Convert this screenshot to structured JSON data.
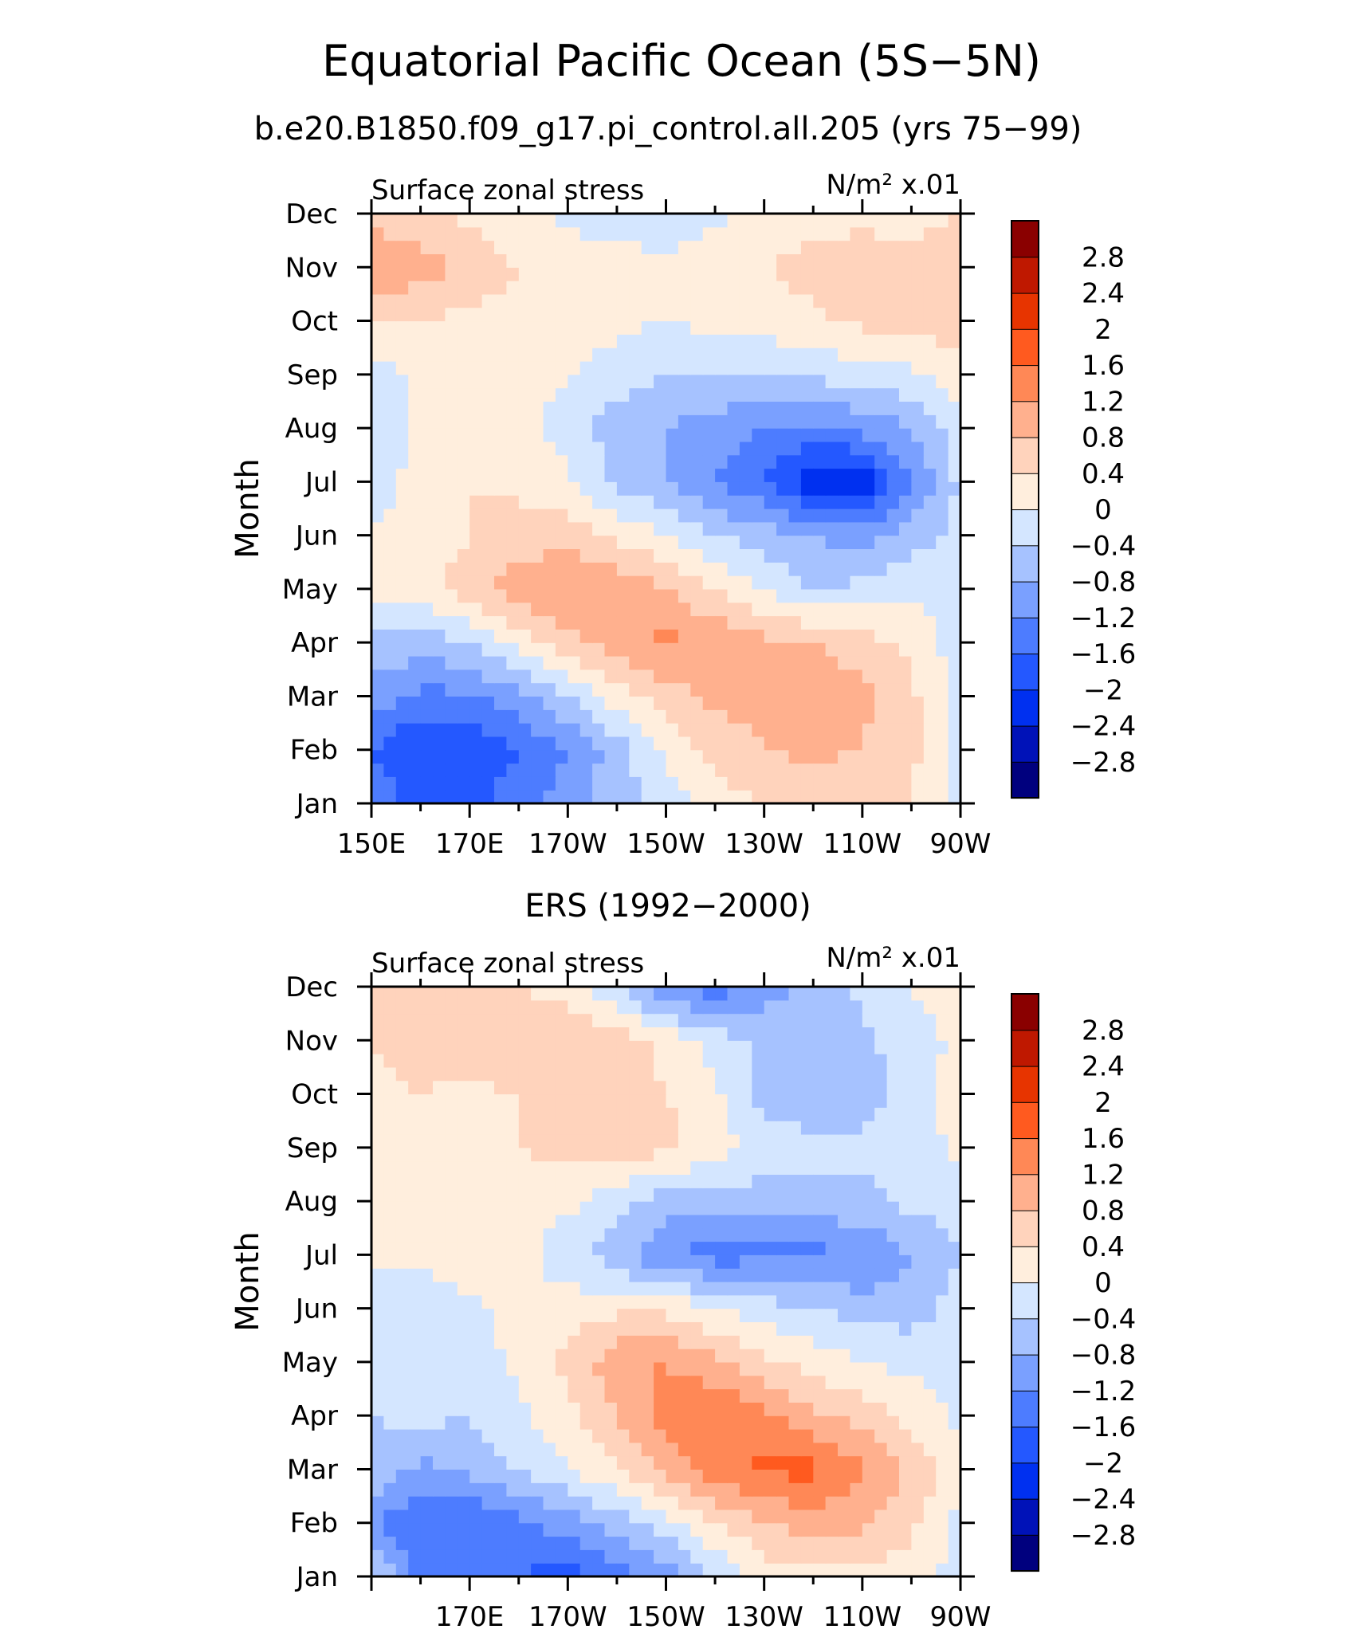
{
  "figure": {
    "title": "Equatorial Pacific Ocean (5S−5N)",
    "subtitle": "b.e20.B1850.f09_g17.pi_control.all.205 (yrs 75−99)",
    "panel2_title": "ERS (1992−2000)"
  },
  "colorbar": {
    "labels": [
      "2.8",
      "2.4",
      "2",
      "1.6",
      "1.2",
      "0.8",
      "0.4",
      "0",
      "−0.4",
      "−0.8",
      "−1.2",
      "−1.6",
      "−2",
      "−2.4",
      "−2.8"
    ],
    "levels": [
      -2.8,
      -2.4,
      -2,
      -1.6,
      -1.2,
      -0.8,
      -0.4,
      0,
      0.4,
      0.8,
      1.2,
      1.6,
      2,
      2.4,
      2.8
    ],
    "colors_low_to_high": [
      "#00007e",
      "#0012b8",
      "#0030f0",
      "#2458ff",
      "#4d7cff",
      "#7aa0ff",
      "#a6c2ff",
      "#d4e6ff",
      "#ffeedd",
      "#ffd3bc",
      "#ffb08e",
      "#ff8856",
      "#ff5a1f",
      "#e73400",
      "#bf1800",
      "#8a0000"
    ]
  },
  "chart_data": [
    {
      "type": "heatmap",
      "title": "Equatorial Pacific Ocean (5S−5N)",
      "subtitle": "b.e20.B1850.f09_g17.pi_control.all.205 (yrs 75−99)",
      "left_label": "Surface zonal stress",
      "right_label": "N/m² x.01",
      "ylabel": "Month",
      "x_ticks": [
        "150E",
        "170E",
        "170W",
        "150W",
        "130W",
        "110W",
        "90W"
      ],
      "x_tick_values": [
        150,
        170,
        190,
        210,
        230,
        250,
        270
      ],
      "xlim": [
        150,
        270
      ],
      "y_ticks": [
        "Jan",
        "Feb",
        "Mar",
        "Apr",
        "May",
        "Jun",
        "Jul",
        "Aug",
        "Sep",
        "Oct",
        "Nov",
        "Dec"
      ],
      "ylim": [
        1,
        12
      ],
      "lon": [
        150,
        160,
        170,
        180,
        190,
        200,
        210,
        220,
        230,
        240,
        250,
        260,
        270
      ],
      "values": [
        [
          -1.3,
          -1.8,
          -1.7,
          -1.4,
          -1.0,
          -0.6,
          -0.2,
          0.2,
          0.4,
          0.4,
          0.4,
          0.4,
          -0.2
        ],
        [
          -1.6,
          -2.0,
          -1.9,
          -1.6,
          -1.2,
          -0.6,
          0.1,
          0.5,
          0.8,
          0.9,
          0.8,
          0.5,
          -0.2
        ],
        [
          -1.0,
          -1.3,
          -1.3,
          -0.9,
          -0.4,
          0.2,
          0.6,
          0.9,
          1.0,
          1.0,
          0.9,
          0.5,
          -0.2
        ],
        [
          -0.5,
          -0.6,
          -0.4,
          0.2,
          0.6,
          1.0,
          1.3,
          1.1,
          0.9,
          0.8,
          0.6,
          0.3,
          -0.2
        ],
        [
          0.1,
          0.3,
          0.6,
          1.0,
          1.3,
          1.1,
          0.8,
          0.4,
          0.0,
          -0.4,
          -0.3,
          -0.1,
          -0.2
        ],
        [
          0.1,
          0.2,
          0.4,
          0.6,
          0.6,
          0.3,
          0.0,
          -0.4,
          -0.6,
          -0.8,
          -1.0,
          -0.6,
          -0.3
        ],
        [
          -0.3,
          0.2,
          0.4,
          0.3,
          0.1,
          -0.5,
          -0.8,
          -1.2,
          -1.6,
          -2.4,
          -2.3,
          -1.2,
          -0.3
        ],
        [
          -0.4,
          0.2,
          0.3,
          0.2,
          -0.2,
          -0.6,
          -0.8,
          -1.0,
          -1.2,
          -1.3,
          -1.1,
          -0.8,
          -0.2
        ],
        [
          -0.2,
          0.1,
          0.2,
          0.2,
          0.0,
          -0.2,
          -0.4,
          -0.4,
          -0.4,
          -0.3,
          -0.2,
          -0.1,
          0.3
        ],
        [
          0.4,
          0.4,
          0.3,
          0.2,
          0.2,
          0.1,
          0.0,
          0.1,
          0.2,
          0.3,
          0.5,
          0.5,
          0.6
        ],
        [
          1.3,
          1.0,
          0.7,
          0.4,
          0.3,
          0.2,
          0.1,
          0.2,
          0.4,
          0.6,
          0.6,
          0.5,
          0.6
        ],
        [
          0.6,
          0.5,
          0.3,
          0.1,
          -0.1,
          -0.3,
          -0.2,
          -0.1,
          0.1,
          0.2,
          0.3,
          0.3,
          0.4
        ]
      ]
    },
    {
      "type": "heatmap",
      "title": "ERS (1992−2000)",
      "left_label": "Surface zonal stress",
      "right_label": "N/m² x.01",
      "ylabel": "Month",
      "x_ticks": [
        "170E",
        "170W",
        "150W",
        "130W",
        "110W",
        "90W"
      ],
      "x_tick_values": [
        170,
        190,
        210,
        230,
        250,
        270
      ],
      "xlim": [
        150,
        270
      ],
      "y_ticks": [
        "Jan",
        "Feb",
        "Mar",
        "Apr",
        "May",
        "Jun",
        "Jul",
        "Aug",
        "Sep",
        "Oct",
        "Nov",
        "Dec"
      ],
      "ylim": [
        1,
        12
      ],
      "lon": [
        150,
        160,
        170,
        180,
        190,
        200,
        210,
        220,
        230,
        240,
        250,
        260,
        270
      ],
      "values": [
        [
          -0.3,
          -1.3,
          -1.5,
          -1.6,
          -1.8,
          -1.4,
          -1.0,
          -0.4,
          0.2,
          0.3,
          0.3,
          0.2,
          -0.2
        ],
        [
          -1.1,
          -1.6,
          -1.6,
          -1.3,
          -1.0,
          -0.6,
          -0.2,
          0.4,
          0.8,
          1.0,
          0.9,
          0.5,
          -0.1
        ],
        [
          -0.5,
          -0.9,
          -0.7,
          -0.4,
          0.0,
          0.4,
          0.9,
          1.4,
          1.7,
          1.7,
          1.3,
          0.7,
          0.1
        ],
        [
          -0.4,
          -0.3,
          -0.4,
          -0.1,
          0.3,
          0.8,
          1.4,
          1.6,
          1.3,
          0.9,
          0.6,
          0.3,
          -0.1
        ],
        [
          -0.2,
          -0.1,
          -0.2,
          0.1,
          0.5,
          1.1,
          1.2,
          0.9,
          0.5,
          0.2,
          0.0,
          -0.1,
          -0.2
        ],
        [
          -0.2,
          -0.4,
          -0.1,
          0.1,
          0.2,
          0.3,
          0.3,
          0.0,
          -0.2,
          -0.4,
          -0.6,
          -0.6,
          -0.2
        ],
        [
          0.1,
          0.2,
          0.3,
          0.2,
          -0.3,
          -0.6,
          -1.2,
          -1.4,
          -1.3,
          -1.3,
          -1.2,
          -0.8,
          -0.4
        ],
        [
          0.2,
          0.3,
          0.4,
          0.3,
          0.1,
          -0.3,
          -0.6,
          -0.7,
          -0.6,
          -0.6,
          -0.5,
          -0.3,
          -0.2
        ],
        [
          0.2,
          0.4,
          0.3,
          0.4,
          0.5,
          0.6,
          0.5,
          0.2,
          -0.1,
          -0.2,
          -0.3,
          -0.2,
          0.1
        ],
        [
          0.3,
          0.4,
          0.3,
          0.4,
          0.4,
          0.6,
          0.4,
          0.1,
          -0.6,
          -0.8,
          -0.6,
          -0.2,
          0.2
        ],
        [
          0.4,
          0.5,
          0.6,
          0.8,
          0.7,
          0.6,
          0.3,
          -0.2,
          -0.5,
          -0.6,
          -0.5,
          -0.2,
          0.1
        ],
        [
          0.4,
          0.6,
          0.5,
          0.4,
          0.2,
          -0.3,
          -1.3,
          -1.4,
          -1.0,
          -0.6,
          -0.3,
          0.0,
          0.2
        ]
      ]
    }
  ]
}
